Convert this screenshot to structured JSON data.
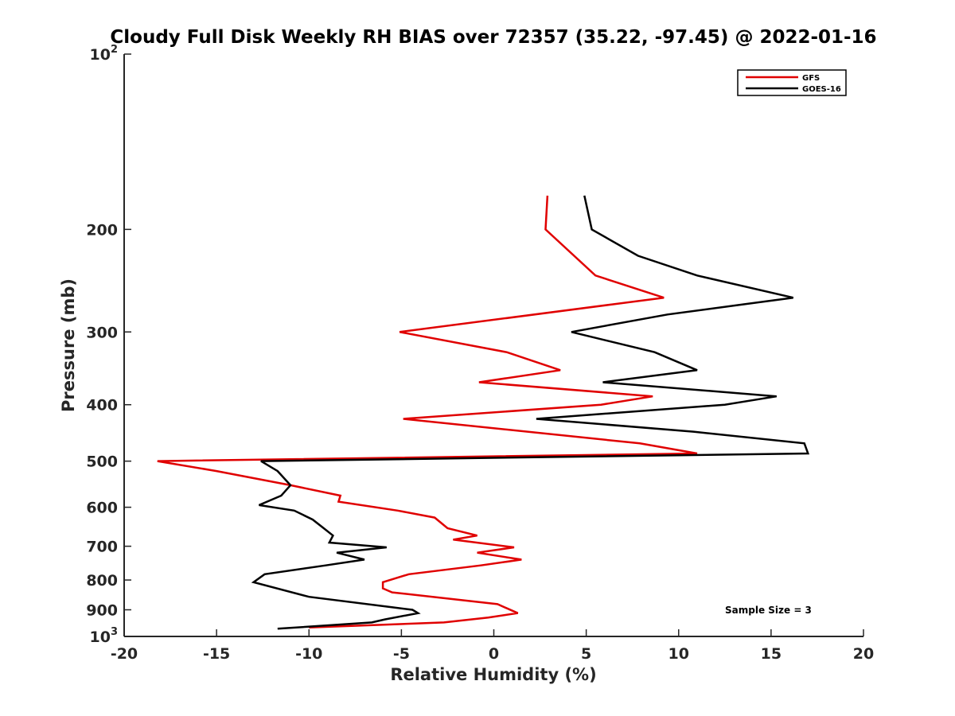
{
  "chart_data": {
    "type": "line",
    "title": "Cloudy Full Disk Weekly RH BIAS over 72357 (35.22, -97.45) @ 2022-01-16",
    "xlabel": "Relative Humidity (%)",
    "ylabel": "Pressure (mb)",
    "xlim": [
      -20,
      20
    ],
    "ylim": [
      100,
      1000
    ],
    "y_scale": "log",
    "y_reversed": true,
    "x_ticks": [
      "-20",
      "-15",
      "-10",
      "-5",
      "0",
      "5",
      "10",
      "15",
      "20"
    ],
    "y_ticks": [
      {
        "value": 100,
        "base": "10",
        "exp": "2"
      },
      {
        "value": 200,
        "label": "200"
      },
      {
        "value": 300,
        "label": "300"
      },
      {
        "value": 400,
        "label": "400"
      },
      {
        "value": 500,
        "label": "500"
      },
      {
        "value": 600,
        "label": "600"
      },
      {
        "value": 700,
        "label": "700"
      },
      {
        "value": 800,
        "label": "800"
      },
      {
        "value": 900,
        "label": "900"
      },
      {
        "value": 1000,
        "base": "10",
        "exp": "3"
      }
    ],
    "grid": false,
    "legend_position": "top-right",
    "annotation": "Sample Size = 3",
    "series": [
      {
        "name": "GFS",
        "color": "#e00000",
        "points": [
          {
            "x": 2.9,
            "y": 175
          },
          {
            "x": 2.8,
            "y": 200
          },
          {
            "x": 5.5,
            "y": 240
          },
          {
            "x": 9.2,
            "y": 262
          },
          {
            "x": -5.1,
            "y": 300
          },
          {
            "x": 0.7,
            "y": 325
          },
          {
            "x": 3.6,
            "y": 349
          },
          {
            "x": -0.8,
            "y": 366
          },
          {
            "x": 8.6,
            "y": 387
          },
          {
            "x": 5.8,
            "y": 400
          },
          {
            "x": -4.9,
            "y": 423
          },
          {
            "x": 7.9,
            "y": 466
          },
          {
            "x": 11.0,
            "y": 485
          },
          {
            "x": -18.2,
            "y": 500
          },
          {
            "x": -15.0,
            "y": 520
          },
          {
            "x": -11.0,
            "y": 550
          },
          {
            "x": -8.3,
            "y": 573
          },
          {
            "x": -8.4,
            "y": 587
          },
          {
            "x": -5.2,
            "y": 608
          },
          {
            "x": -3.2,
            "y": 625
          },
          {
            "x": -2.5,
            "y": 652
          },
          {
            "x": -0.9,
            "y": 671
          },
          {
            "x": -2.2,
            "y": 682
          },
          {
            "x": 1.1,
            "y": 703
          },
          {
            "x": -0.9,
            "y": 718
          },
          {
            "x": 1.5,
            "y": 738
          },
          {
            "x": -0.7,
            "y": 755
          },
          {
            "x": -4.6,
            "y": 782
          },
          {
            "x": -6.0,
            "y": 807
          },
          {
            "x": -6.0,
            "y": 827
          },
          {
            "x": -5.5,
            "y": 840
          },
          {
            "x": 0.2,
            "y": 880
          },
          {
            "x": 1.3,
            "y": 912
          },
          {
            "x": -0.3,
            "y": 928
          },
          {
            "x": -2.7,
            "y": 946
          },
          {
            "x": -10.0,
            "y": 965
          }
        ]
      },
      {
        "name": "GOES-16",
        "color": "#000000",
        "points": [
          {
            "x": 4.9,
            "y": 175
          },
          {
            "x": 5.3,
            "y": 200
          },
          {
            "x": 7.8,
            "y": 222
          },
          {
            "x": 11.0,
            "y": 240
          },
          {
            "x": 16.2,
            "y": 262
          },
          {
            "x": 9.4,
            "y": 280
          },
          {
            "x": 4.2,
            "y": 300
          },
          {
            "x": 8.7,
            "y": 325
          },
          {
            "x": 11.0,
            "y": 349
          },
          {
            "x": 5.9,
            "y": 366
          },
          {
            "x": 15.3,
            "y": 387
          },
          {
            "x": 12.5,
            "y": 400
          },
          {
            "x": 2.3,
            "y": 423
          },
          {
            "x": 10.8,
            "y": 445
          },
          {
            "x": 16.8,
            "y": 466
          },
          {
            "x": 17.0,
            "y": 485
          },
          {
            "x": -12.6,
            "y": 500
          },
          {
            "x": -11.7,
            "y": 520
          },
          {
            "x": -11.0,
            "y": 550
          },
          {
            "x": -11.5,
            "y": 573
          },
          {
            "x": -12.7,
            "y": 595
          },
          {
            "x": -10.8,
            "y": 608
          },
          {
            "x": -9.8,
            "y": 630
          },
          {
            "x": -9.2,
            "y": 652
          },
          {
            "x": -8.7,
            "y": 671
          },
          {
            "x": -8.9,
            "y": 690
          },
          {
            "x": -5.8,
            "y": 703
          },
          {
            "x": -8.5,
            "y": 718
          },
          {
            "x": -7.0,
            "y": 738
          },
          {
            "x": -9.1,
            "y": 755
          },
          {
            "x": -12.4,
            "y": 782
          },
          {
            "x": -13.0,
            "y": 807
          },
          {
            "x": -10.0,
            "y": 855
          },
          {
            "x": -4.4,
            "y": 900
          },
          {
            "x": -4.1,
            "y": 912
          },
          {
            "x": -5.9,
            "y": 935
          },
          {
            "x": -6.6,
            "y": 946
          },
          {
            "x": -11.7,
            "y": 970
          }
        ]
      }
    ]
  }
}
